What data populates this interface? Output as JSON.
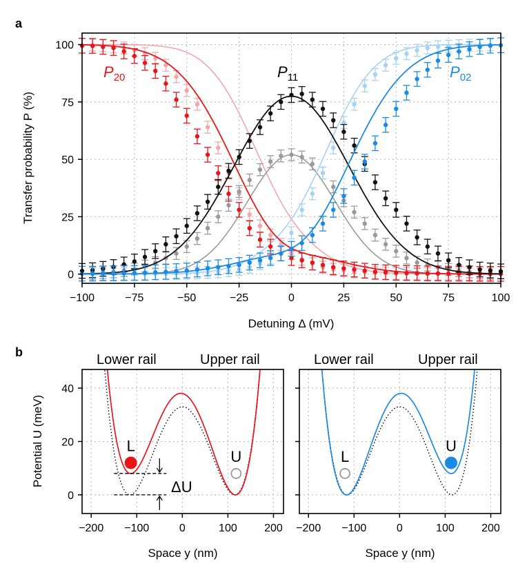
{
  "panel_a": {
    "letter": "a",
    "curve_labels": {
      "p20": {
        "main": "P",
        "sub": "20"
      },
      "p11": {
        "main": "P",
        "sub": "11"
      },
      "p02": {
        "main": "P",
        "sub": "02"
      }
    }
  },
  "panel_b": {
    "letter": "b",
    "rail_labels": {
      "lower": "Lower rail",
      "upper": "Upper rail"
    },
    "left": {
      "L": "L",
      "U": "U",
      "delta_u": "ΔU"
    },
    "right": {
      "L": "L",
      "U": "U"
    }
  },
  "colors": {
    "red": "#e8141a",
    "red_light": "#f2a7aa",
    "blue": "#1a8ae6",
    "blue_light": "#a6d2f3",
    "black": "#111111",
    "gray": "#9a9a9a"
  },
  "chart_data": [
    {
      "id": "transfer-probability",
      "type": "scatter",
      "title": "",
      "xlabel": "Detuning Δ (mV)",
      "ylabel": "Transfer probability P (%)",
      "xlim": [
        -100,
        100
      ],
      "ylim": [
        -4,
        105
      ],
      "xticks": [
        -100,
        -75,
        -50,
        -25,
        0,
        25,
        50,
        75,
        100
      ],
      "xtick_labels": [
        "−100",
        "−75",
        "−50",
        "−25",
        "0",
        "25",
        "50",
        "75",
        "100"
      ],
      "yticks": [
        0,
        25,
        50,
        75,
        100
      ],
      "ytick_labels": [
        "0",
        "25",
        "50",
        "75",
        "100"
      ],
      "grid": true,
      "model": {
        "dark": {
          "center": -35,
          "width": 11.7,
          "peak_center": 0,
          "peak_sigma": 27.5,
          "peak_amp": 77.5
        },
        "light": {
          "center": -22,
          "width": 9,
          "peak_center": 0,
          "peak_sigma": 21,
          "peak_amp": 52
        }
      },
      "series": [
        {
          "name": "P20",
          "color": "#e8141a",
          "style": "dark",
          "x": [
            -100,
            -95,
            -90,
            -85,
            -80,
            -75,
            -70,
            -65,
            -60,
            -55,
            -50,
            -45,
            -40,
            -35,
            -30,
            -25,
            -20,
            -15,
            -10,
            -5,
            0,
            5,
            10,
            15,
            20,
            25,
            30,
            35,
            40,
            45,
            50,
            55,
            60,
            65,
            70,
            75,
            80,
            85,
            90,
            95,
            100
          ],
          "y": [
            99.5,
            99.4,
            99,
            98.5,
            97,
            95,
            92,
            88.5,
            83,
            76,
            69,
            60,
            52,
            44,
            35,
            28,
            20,
            15,
            12,
            9,
            7,
            6,
            5,
            4,
            3,
            2.5,
            2,
            1.5,
            1,
            0.8,
            0.6,
            0.5,
            0.4,
            0.3,
            0.3,
            0.2,
            0.2,
            0.2,
            0.1,
            0.1,
            0.1
          ]
        },
        {
          "name": "P11",
          "color": "#111111",
          "style": "dark",
          "x": [
            -100,
            -95,
            -90,
            -85,
            -80,
            -75,
            -70,
            -65,
            -60,
            -55,
            -50,
            -45,
            -40,
            -35,
            -30,
            -25,
            -20,
            -15,
            -10,
            -5,
            0,
            5,
            10,
            15,
            20,
            25,
            30,
            35,
            40,
            45,
            50,
            55,
            60,
            65,
            70,
            75,
            80,
            85,
            90,
            95,
            100
          ],
          "y": [
            1.4,
            1.7,
            2.3,
            3.1,
            4.2,
            5.5,
            7.5,
            10,
            13,
            16.5,
            21,
            26.5,
            31.5,
            38,
            45,
            51,
            58,
            64,
            70,
            75,
            78,
            78.5,
            76,
            72,
            67,
            62,
            56,
            48,
            40,
            33,
            28,
            22,
            16,
            12,
            9,
            6,
            4,
            3,
            2,
            1.6,
            1.2
          ]
        },
        {
          "name": "P02",
          "color": "#1a8ae6",
          "style": "dark",
          "x": [
            -100,
            -95,
            -90,
            -85,
            -80,
            -75,
            -70,
            -65,
            -60,
            -55,
            -50,
            -45,
            -40,
            -35,
            -30,
            -25,
            -20,
            -15,
            -10,
            -5,
            0,
            5,
            10,
            15,
            20,
            25,
            30,
            35,
            40,
            45,
            50,
            55,
            60,
            65,
            70,
            75,
            80,
            85,
            90,
            95,
            100
          ],
          "y": [
            0.2,
            0.2,
            0.3,
            0.3,
            0.4,
            0.5,
            0.6,
            0.8,
            1,
            1.3,
            1.6,
            2,
            2.5,
            3,
            3.5,
            4,
            5,
            6,
            7,
            9,
            11,
            13.5,
            17,
            22,
            28,
            34,
            42,
            49,
            57,
            65,
            72,
            79,
            85,
            89,
            93,
            95.5,
            97,
            98,
            99,
            99.5,
            99.7
          ]
        },
        {
          "name": "P20 (faint)",
          "color": "#f2a7aa",
          "style": "light",
          "x": [
            -95,
            -90,
            -85,
            -80,
            -75,
            -70,
            -65,
            -60,
            -55,
            -50,
            -45,
            -40,
            -35,
            -30,
            -25,
            -20,
            -15,
            -10,
            -5,
            0,
            5,
            10,
            15,
            20,
            25,
            30,
            35,
            40,
            45,
            50,
            55,
            60,
            65,
            70,
            75,
            80,
            85,
            90,
            95
          ],
          "y": [
            99.8,
            99.5,
            99,
            98.5,
            97.5,
            96,
            94,
            91,
            86,
            80,
            74,
            64,
            55,
            44,
            35,
            26,
            21,
            17,
            13,
            9,
            6.5,
            4.5,
            3,
            2,
            1.5,
            1,
            0.8,
            0.6,
            0.4,
            0.3,
            0.2,
            0.2,
            0.1,
            0.1,
            0.1,
            0.1,
            0,
            0,
            0
          ]
        },
        {
          "name": "P11 (faint)",
          "color": "#9a9a9a",
          "style": "light",
          "x": [
            -95,
            -90,
            -85,
            -80,
            -75,
            -70,
            -65,
            -60,
            -55,
            -50,
            -45,
            -40,
            -35,
            -30,
            -25,
            -20,
            -15,
            -10,
            -5,
            0,
            5,
            10,
            15,
            20,
            25,
            30,
            35,
            40,
            45,
            50,
            55,
            60,
            65,
            70,
            75,
            80,
            85,
            90,
            95
          ],
          "y": [
            0.5,
            0.7,
            1,
            1.5,
            2.2,
            3.5,
            5,
            7,
            9,
            12,
            15.5,
            20,
            25,
            30,
            36,
            41,
            45.5,
            49,
            51.5,
            52,
            51,
            48,
            44,
            38,
            32,
            27,
            22,
            17,
            13,
            10,
            7,
            5,
            4,
            3,
            2,
            1.5,
            1,
            0.7,
            0.5
          ]
        },
        {
          "name": "P02 (faint)",
          "color": "#a6d2f3",
          "style": "light",
          "x": [
            -95,
            -90,
            -85,
            -80,
            -75,
            -70,
            -65,
            -60,
            -55,
            -50,
            -45,
            -40,
            -35,
            -30,
            -25,
            -20,
            -15,
            -10,
            -5,
            0,
            5,
            10,
            15,
            20,
            25,
            30,
            35,
            40,
            45,
            50,
            55,
            60,
            65,
            70,
            75,
            80,
            85,
            90,
            95
          ],
          "y": [
            0,
            0,
            0,
            0.1,
            0.1,
            0.1,
            0.2,
            0.2,
            0.3,
            0.4,
            0.6,
            0.8,
            1,
            1.5,
            2,
            3,
            4.5,
            7,
            12,
            18,
            28,
            35,
            44,
            55,
            66,
            74,
            82,
            87,
            91,
            94,
            96,
            97.5,
            98.5,
            99,
            99.3,
            99.5,
            99.7,
            99.8,
            99.9
          ]
        }
      ]
    },
    {
      "id": "potential-left",
      "type": "line",
      "xlabel": "Space y (nm)",
      "ylabel": "Potential U (meV)",
      "xlim": [
        -220,
        222
      ],
      "ylim": [
        -7,
        47
      ],
      "xticks": [
        -200,
        -100,
        0,
        100,
        200
      ],
      "xtick_labels": [
        "−200",
        "−100",
        "0",
        "100",
        "200"
      ],
      "yticks": [
        0,
        20,
        40
      ],
      "ytick_labels": [
        "0",
        "20",
        "40"
      ],
      "grid": true,
      "potential": {
        "a": 115,
        "barrier": 34,
        "tilt": -4
      },
      "reference": {
        "a": 115,
        "barrier": 33,
        "tilt": 0
      },
      "line_color": "#e8141a",
      "occupied": {
        "label": "L",
        "y": -113,
        "u": 12,
        "color": "#e8141a"
      },
      "empty": {
        "label": "U",
        "y": 118,
        "u": 8,
        "color": "#9a9a9a"
      }
    },
    {
      "id": "potential-right",
      "type": "line",
      "xlabel": "Space y (nm)",
      "ylabel": "",
      "xlim": [
        -220,
        222
      ],
      "ylim": [
        -7,
        47
      ],
      "xticks": [
        -200,
        -100,
        0,
        100,
        200
      ],
      "xtick_labels": [
        "−200",
        "−100",
        "0",
        "100",
        "200"
      ],
      "yticks": [
        0,
        20,
        40
      ],
      "ytick_labels": [
        "",
        "",
        ""
      ],
      "grid": true,
      "potential": {
        "a": 115,
        "barrier": 34,
        "tilt": 4
      },
      "reference": {
        "a": 115,
        "barrier": 33,
        "tilt": 0
      },
      "line_color": "#1a8ae6",
      "occupied": {
        "label": "U",
        "y": 113,
        "u": 12,
        "color": "#1a8ae6"
      },
      "empty": {
        "label": "L",
        "y": -120,
        "u": 8,
        "color": "#9a9a9a"
      }
    }
  ]
}
